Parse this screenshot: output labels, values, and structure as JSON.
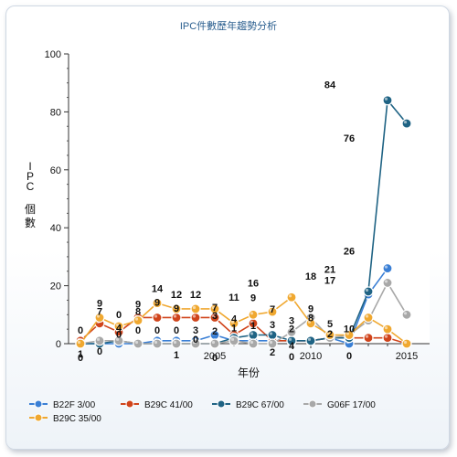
{
  "chart_data": {
    "type": "line",
    "title": "IPC件數歷年趨勢分析",
    "xlabel": "年份",
    "ylabel": "IPC 個數",
    "x": [
      1998,
      1999,
      2000,
      2001,
      2002,
      2003,
      2004,
      2005,
      2006,
      2007,
      2008,
      2009,
      2010,
      2011,
      2012,
      2013,
      2014,
      2015
    ],
    "x_ticks": [
      2005,
      2010,
      2015
    ],
    "xlim": [
      1998,
      2015
    ],
    "ylim": [
      0,
      100
    ],
    "y_ticks": [
      0,
      20,
      40,
      60,
      80,
      100
    ],
    "series": [
      {
        "name": "B22F 3/00",
        "color": "#3a7fd5",
        "values": [
          0,
          0,
          0,
          0,
          1,
          1,
          1,
          3,
          1,
          1,
          1,
          1,
          1,
          2,
          0,
          17,
          26,
          null
        ]
      },
      {
        "name": "B29C 41/00",
        "color": "#d0441b",
        "values": [
          1,
          7,
          4,
          9,
          9,
          9,
          9,
          9,
          3,
          7,
          1,
          1,
          1,
          2,
          2,
          2,
          2,
          0
        ]
      },
      {
        "name": "B29C 67/00",
        "color": "#1f6384",
        "values": [
          0,
          0,
          1,
          0,
          0,
          0,
          0,
          0,
          2,
          3,
          3,
          1,
          1,
          2,
          2,
          18,
          84,
          76
        ]
      },
      {
        "name": "G06F 17/00",
        "color": "#a8a8a8",
        "values": [
          0,
          1,
          1,
          0,
          0,
          0,
          0,
          0,
          1,
          0,
          0,
          4,
          9,
          2,
          3,
          8,
          21,
          10
        ]
      },
      {
        "name": "B29C 35/00",
        "color": "#f0a830",
        "values": [
          0,
          9,
          6,
          8,
          14,
          12,
          12,
          12,
          7,
          10,
          11,
          16,
          7,
          3,
          3,
          9,
          5,
          0
        ]
      }
    ],
    "data_labels": [
      {
        "text": "0",
        "x": 1998,
        "y": 0,
        "dy": -11
      },
      {
        "text": "0",
        "x": 1998,
        "y": 0,
        "dy": 19
      },
      {
        "text": "1",
        "x": 1998,
        "y": 0,
        "dy": 15
      },
      {
        "text": "9",
        "x": 1999,
        "y": 9,
        "dy": -12
      },
      {
        "text": "7",
        "x": 1999,
        "y": 9,
        "dy": -3
      },
      {
        "text": "0",
        "x": 1999,
        "y": 0,
        "dy": 12
      },
      {
        "text": "0",
        "x": 2000,
        "y": 7,
        "dy": -6
      },
      {
        "text": "4",
        "x": 2000,
        "y": 4,
        "dy": -1
      },
      {
        "text": "0",
        "x": 2000,
        "y": 4,
        "dy": 6
      },
      {
        "text": "9",
        "x": 2001,
        "y": 9,
        "dy": -11
      },
      {
        "text": "8",
        "x": 2001,
        "y": 9,
        "dy": -3
      },
      {
        "text": "0",
        "x": 2001,
        "y": 0,
        "dy": -11
      },
      {
        "text": "14",
        "x": 2002,
        "y": 14,
        "dy": -12
      },
      {
        "text": "9",
        "x": 2002,
        "y": 14,
        "dy": 3
      },
      {
        "text": "0",
        "x": 2002,
        "y": 0,
        "dy": -11
      },
      {
        "text": "12",
        "x": 2003,
        "y": 12,
        "dy": -12
      },
      {
        "text": "9",
        "x": 2003,
        "y": 12,
        "dy": 3
      },
      {
        "text": "0",
        "x": 2003,
        "y": 0,
        "dy": -11
      },
      {
        "text": "1",
        "x": 2003,
        "y": 0,
        "dy": 16
      },
      {
        "text": "12",
        "x": 2004,
        "y": 12,
        "dy": -12
      },
      {
        "text": "3",
        "x": 2004,
        "y": 0,
        "dy": -11
      },
      {
        "text": "0",
        "x": 2004,
        "y": 0,
        "dy": -1
      },
      {
        "text": "7",
        "x": 2005,
        "y": 7,
        "dy": -14
      },
      {
        "text": "3",
        "x": 2005,
        "y": 7,
        "dy": -5
      },
      {
        "text": "2",
        "x": 2005,
        "y": 0,
        "dy": -10
      },
      {
        "text": "0",
        "x": 2005,
        "y": 0,
        "dy": 19
      },
      {
        "text": "11",
        "x": 2006,
        "y": 11,
        "dy": -12
      },
      {
        "text": "4",
        "x": 2006,
        "y": 4,
        "dy": -11
      },
      {
        "text": "1",
        "x": 2006,
        "y": 4,
        "dy": -1
      },
      {
        "text": "16",
        "x": 2007,
        "y": 16,
        "dy": -12
      },
      {
        "text": "9",
        "x": 2007,
        "y": 16,
        "dy": 4
      },
      {
        "text": "1",
        "x": 2007,
        "y": 0,
        "dy": -16
      },
      {
        "text": "7",
        "x": 2008,
        "y": 7,
        "dy": -12
      },
      {
        "text": "3",
        "x": 2008,
        "y": 7,
        "dy": 5
      },
      {
        "text": "2",
        "x": 2008,
        "y": 0,
        "dy": 13
      },
      {
        "text": "3",
        "x": 2009,
        "y": 3,
        "dy": -12
      },
      {
        "text": "2",
        "x": 2009,
        "y": 3,
        "dy": -3
      },
      {
        "text": "4",
        "x": 2009,
        "y": 0,
        "dy": 6
      },
      {
        "text": "0",
        "x": 2009,
        "y": 0,
        "dy": 18
      },
      {
        "text": "18",
        "x": 2010,
        "y": 18,
        "dy": -13
      },
      {
        "text": "9",
        "x": 2010,
        "y": 9,
        "dy": -6
      },
      {
        "text": "8",
        "x": 2010,
        "y": 9,
        "dy": 4
      },
      {
        "text": "84",
        "x": 2011,
        "y": 84,
        "dy": -13
      },
      {
        "text": "21",
        "x": 2011,
        "y": 21,
        "dy": -11
      },
      {
        "text": "17",
        "x": 2011,
        "y": 21,
        "dy": 1
      },
      {
        "text": "5",
        "x": 2011,
        "y": 5,
        "dy": -2
      },
      {
        "text": "2",
        "x": 2011,
        "y": 5,
        "dy": 9
      },
      {
        "text": "76",
        "x": 2012,
        "y": 76,
        "dy": 20
      },
      {
        "text": "26",
        "x": 2012,
        "y": 26,
        "dy": -15
      },
      {
        "text": "10",
        "x": 2012,
        "y": 10,
        "dy": 19
      },
      {
        "text": "0",
        "x": 2012,
        "y": 0,
        "dy": 17
      }
    ]
  },
  "legend": [
    {
      "label": "B22F 3/00",
      "color": "#3a7fd5"
    },
    {
      "label": "B29C 41/00",
      "color": "#d0441b"
    },
    {
      "label": "B29C 67/00",
      "color": "#1f6384"
    },
    {
      "label": "G06F 17/00",
      "color": "#a8a8a8"
    },
    {
      "label": "B29C 35/00",
      "color": "#f0a830"
    }
  ]
}
